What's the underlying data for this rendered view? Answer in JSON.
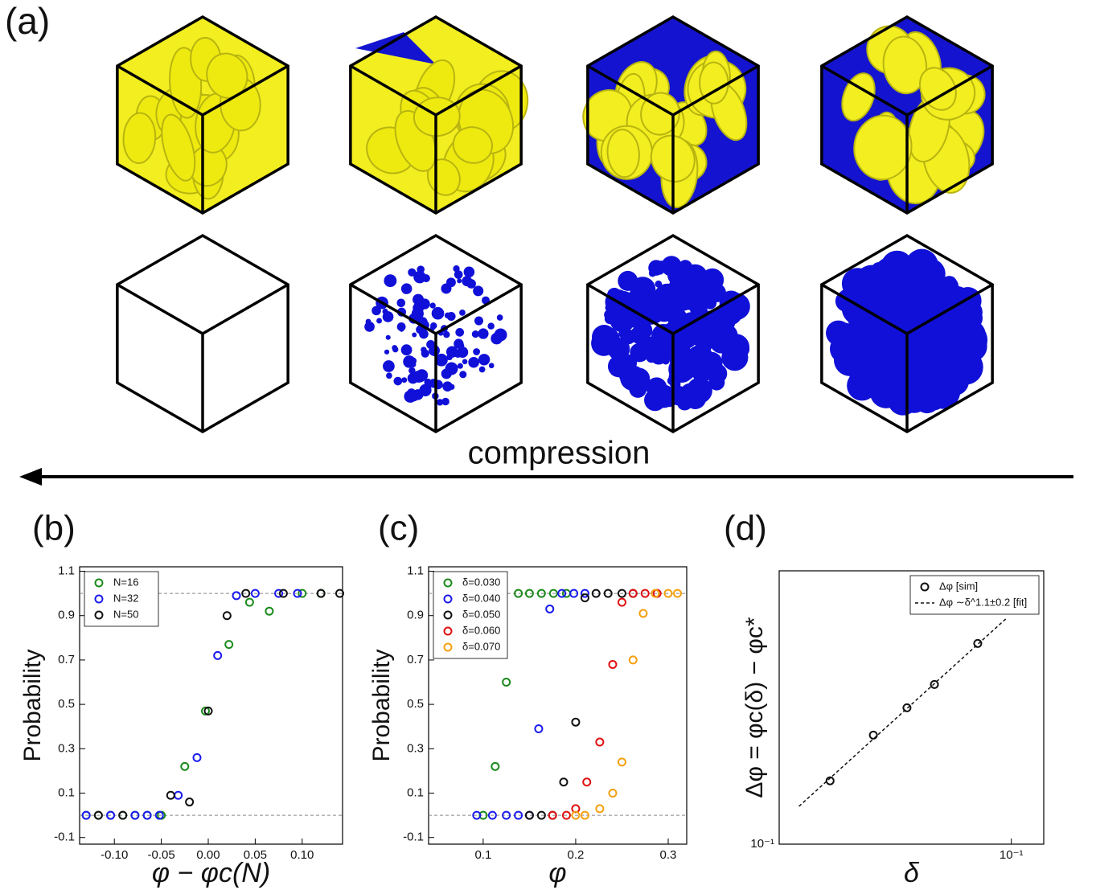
{
  "panel_a": {
    "label": "(a)",
    "arrow_label": "compression"
  },
  "chart_data": [
    {
      "type": "scatter",
      "panel_label": "(b)",
      "x_label": "φ − φc(N)",
      "y_label": "Probability",
      "xlim": [
        -0.137,
        0.143
      ],
      "ylim": [
        -0.13,
        1.12
      ],
      "xticks": [
        {
          "value": -0.1,
          "label": "-0.10"
        },
        {
          "value": -0.05,
          "label": "-0.05"
        },
        {
          "value": 0,
          "label": "0.00"
        },
        {
          "value": 0.05,
          "label": "0.05"
        },
        {
          "value": 0.1,
          "label": "0.10"
        }
      ],
      "yticks": [
        -0.1,
        0.1,
        0.3,
        0.5,
        0.7,
        0.9,
        1.1
      ],
      "hlines": [
        0,
        1
      ],
      "legend": "upper left",
      "series": [
        {
          "name": "N=16",
          "color": "#1a8a1a",
          "x": [
            -0.13,
            -0.117,
            -0.104,
            -0.091,
            -0.078,
            -0.065,
            -0.05,
            -0.025,
            -0.003,
            0.022,
            0.044,
            0.065,
            0.1,
            0.12
          ],
          "values": [
            0,
            0,
            0,
            0,
            0,
            0,
            0,
            0.22,
            0.47,
            0.77,
            0.96,
            0.92,
            1,
            1
          ]
        },
        {
          "name": "N=32",
          "color": "#1a1aee",
          "x": [
            -0.13,
            -0.104,
            -0.078,
            -0.065,
            -0.052,
            -0.032,
            -0.012,
            0.01,
            0.03,
            0.05,
            0.075,
            0.095
          ],
          "values": [
            0,
            0,
            0,
            0,
            0,
            0.09,
            0.26,
            0.72,
            0.99,
            1,
            1,
            1
          ]
        },
        {
          "name": "N=50",
          "color": "#111111",
          "x": [
            -0.117,
            -0.091,
            -0.04,
            -0.02,
            0,
            0.02,
            0.04,
            0.08,
            0.12,
            0.14
          ],
          "values": [
            0,
            0,
            0.09,
            0.06,
            0.47,
            0.9,
            1,
            1,
            1,
            1
          ]
        }
      ]
    },
    {
      "type": "scatter",
      "panel_label": "(c)",
      "x_label": "φ",
      "y_label": "Probability",
      "xlim": [
        0.041,
        0.32
      ],
      "ylim": [
        -0.13,
        1.12
      ],
      "xticks": [
        0.1,
        0.2,
        0.3
      ],
      "yticks": [
        -0.1,
        0.1,
        0.3,
        0.5,
        0.7,
        0.9,
        1.1
      ],
      "hlines": [
        0,
        1
      ],
      "legend": "upper left",
      "series": [
        {
          "name": "δ=0.030",
          "color": "#1a8a1a",
          "x": [
            0.1,
            0.113,
            0.125,
            0.138,
            0.15,
            0.163,
            0.176,
            0.19
          ],
          "values": [
            0,
            0.22,
            0.6,
            1,
            1,
            1,
            1,
            1
          ]
        },
        {
          "name": "δ=0.040",
          "color": "#1a1aee",
          "x": [
            0.093,
            0.11,
            0.125,
            0.138,
            0.15,
            0.16,
            0.172,
            0.185,
            0.198,
            0.21
          ],
          "values": [
            0,
            0,
            0,
            0,
            0,
            0.39,
            0.93,
            1,
            1,
            1
          ]
        },
        {
          "name": "δ=0.050",
          "color": "#111111",
          "x": [
            0.15,
            0.163,
            0.175,
            0.187,
            0.2,
            0.21,
            0.222,
            0.235,
            0.25,
            0.262
          ],
          "values": [
            0,
            0,
            0,
            0.15,
            0.42,
            0.98,
            1,
            1,
            1,
            1
          ]
        },
        {
          "name": "δ=0.060",
          "color": "#e01010",
          "x": [
            0.175,
            0.19,
            0.2,
            0.212,
            0.226,
            0.24,
            0.25,
            0.262,
            0.275,
            0.288
          ],
          "values": [
            0,
            0,
            0.03,
            0.15,
            0.33,
            0.68,
            0.96,
            1,
            1,
            1
          ]
        },
        {
          "name": "δ=0.070",
          "color": "#f5a010",
          "x": [
            0.2,
            0.21,
            0.226,
            0.24,
            0.25,
            0.262,
            0.273,
            0.286,
            0.3,
            0.31
          ],
          "values": [
            0,
            0,
            0.03,
            0.1,
            0.24,
            0.7,
            0.91,
            1,
            1,
            1
          ]
        }
      ]
    },
    {
      "type": "scatter",
      "panel_label": "(d)",
      "x_label": "δ",
      "y_label": "Δφ = φc(δ) − φc*",
      "xscale": "log",
      "yscale": "log",
      "xlim": [
        0.0214,
        0.124
      ],
      "ylim": [
        0.1,
        0.3
      ],
      "xticks": [
        {
          "value": 0.1,
          "label": "10⁻¹"
        }
      ],
      "yticks": [
        {
          "value": 0.1,
          "label": "10⁻¹"
        }
      ],
      "legend": "upper right",
      "series": [
        {
          "name": "Δφ  [sim]",
          "color": "#111111",
          "x": [
            0.03,
            0.04,
            0.05,
            0.06,
            0.08
          ],
          "values": [
            0.129,
            0.155,
            0.173,
            0.19,
            0.224
          ]
        },
        {
          "name": "Δφ ∼δ^1.1±0.2 [fit]",
          "color": "#111111",
          "style": "dashed-line",
          "x": [
            0.0244,
            0.0974
          ],
          "values": [
            0.1164,
            0.2487
          ]
        }
      ]
    }
  ]
}
